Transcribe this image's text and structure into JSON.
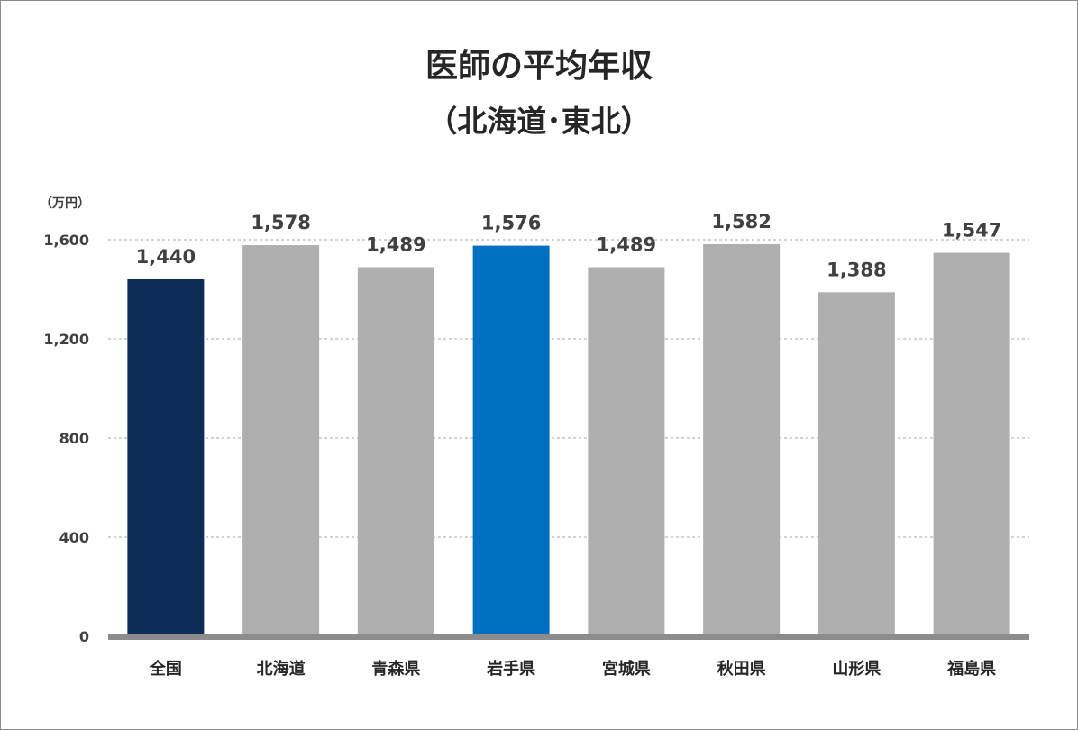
{
  "chart_data": {
    "type": "bar",
    "title": "医師の平均年収",
    "subtitle": "（北海道･東北）",
    "unit": "（万円）",
    "categories": [
      "全国",
      "北海道",
      "青森県",
      "岩手県",
      "宮城県",
      "秋田県",
      "山形県",
      "福島県"
    ],
    "values": [
      1440,
      1578,
      1489,
      1576,
      1489,
      1582,
      1388,
      1547
    ],
    "value_labels": [
      "1,440",
      "1,578",
      "1,489",
      "1,576",
      "1,489",
      "1,582",
      "1,388",
      "1,547"
    ],
    "bar_colors": [
      "#0b2d57",
      "#afafaf",
      "#afafaf",
      "#0070c0",
      "#afafaf",
      "#afafaf",
      "#afafaf",
      "#afafaf"
    ],
    "ylim": [
      0,
      1600
    ],
    "yticks": [
      0,
      400,
      800,
      1200,
      1600
    ],
    "ytick_labels": [
      "0",
      "400",
      "800",
      "1,200",
      "1,600"
    ],
    "grid": "dashed horizontal",
    "legend": "none"
  }
}
